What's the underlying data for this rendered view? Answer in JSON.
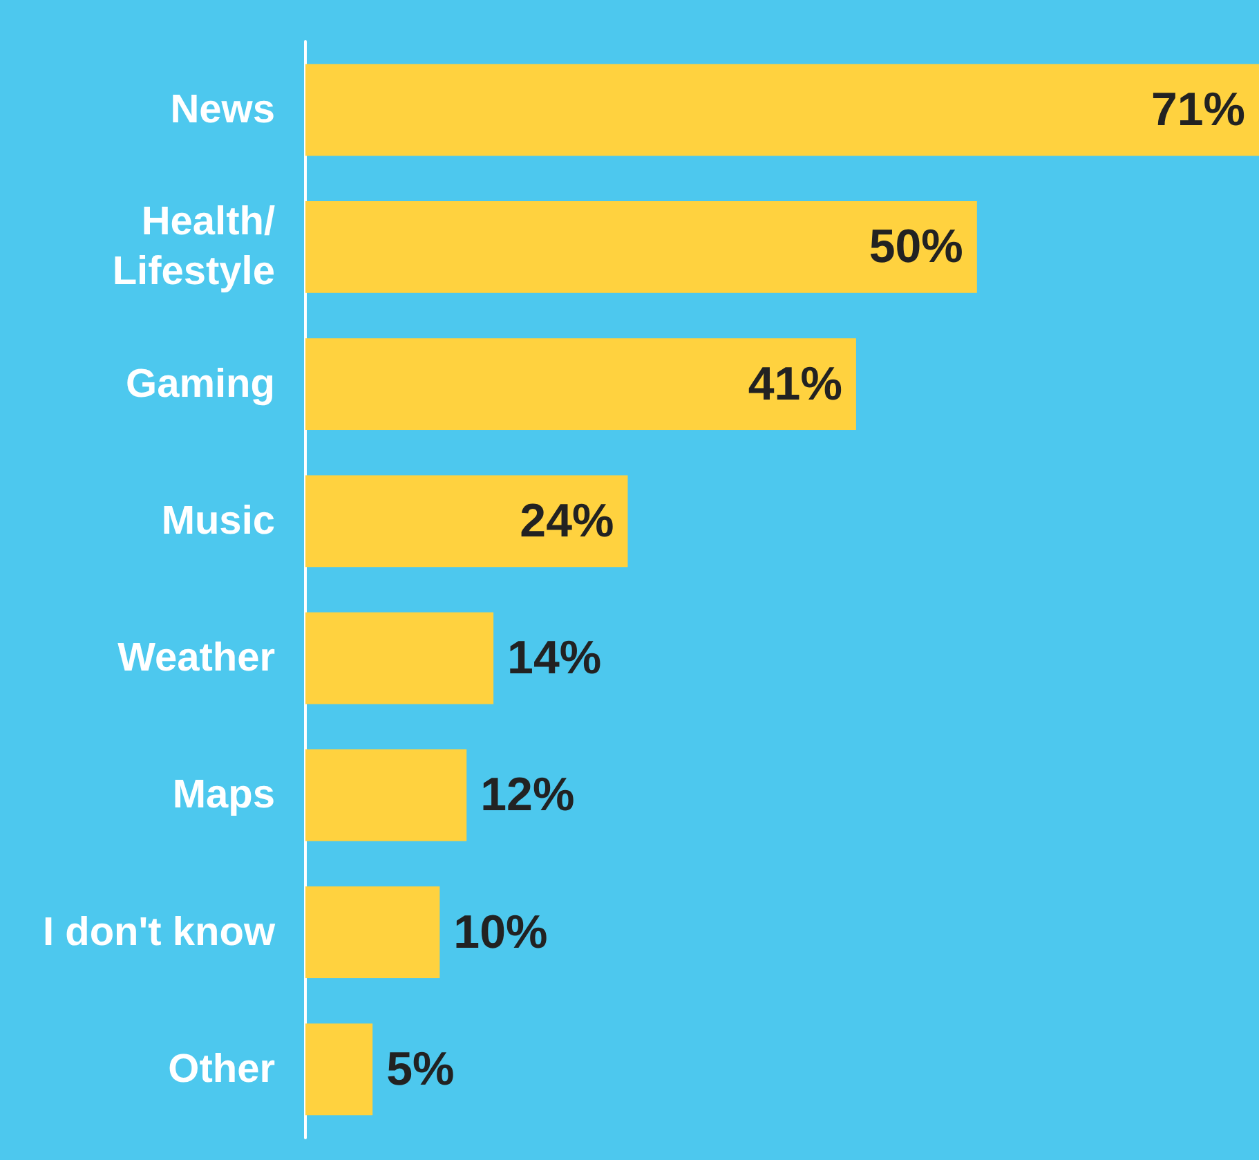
{
  "chart_data": {
    "type": "bar",
    "orientation": "horizontal",
    "categories": [
      "News",
      "Health/\nLifestyle",
      "Gaming",
      "Music",
      "Weather",
      "Maps",
      "I don't know",
      "Other"
    ],
    "values": [
      71,
      50,
      41,
      24,
      14,
      12,
      10,
      5
    ],
    "value_labels": [
      "71%",
      "50%",
      "41%",
      "24%",
      "14%",
      "12%",
      "10%",
      "5%"
    ],
    "color": "#ffd23f"
  }
}
